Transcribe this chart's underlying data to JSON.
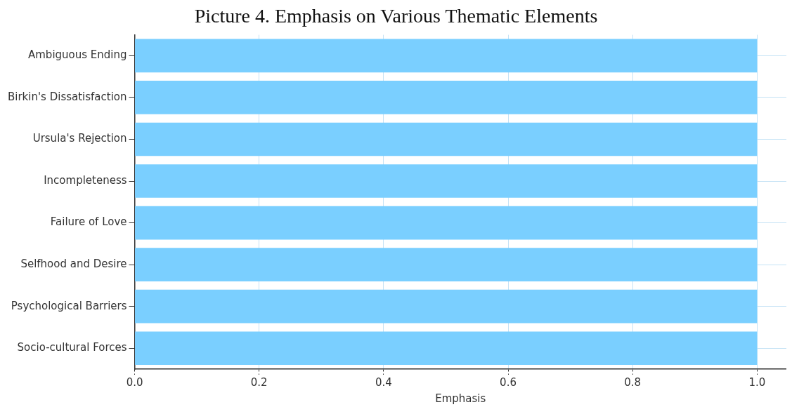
{
  "chart_data": {
    "type": "bar",
    "orientation": "horizontal",
    "title": "Picture 4. Emphasis on Various Thematic Elements",
    "xlabel": "Emphasis",
    "categories": [
      "Ambiguous Ending",
      "Birkin's Dissatisfaction",
      "Ursula's Rejection",
      "Incompleteness",
      "Failure of Love",
      "Selfhood and Desire",
      "Psychological Barriers",
      "Socio-cultural Forces"
    ],
    "values": [
      1.0,
      1.0,
      1.0,
      1.0,
      1.0,
      1.0,
      1.0,
      1.0
    ],
    "color": "#7acfff",
    "xlim": [
      0,
      1.047
    ],
    "xticks": [
      {
        "value": 0,
        "label": "0.0"
      },
      {
        "value": 0.2,
        "label": "0.2"
      },
      {
        "value": 0.4,
        "label": "0.4"
      },
      {
        "value": 0.6,
        "label": "0.6"
      },
      {
        "value": 0.8,
        "label": "0.8"
      },
      {
        "value": 1.0,
        "label": "1.0"
      }
    ],
    "grid": true
  }
}
